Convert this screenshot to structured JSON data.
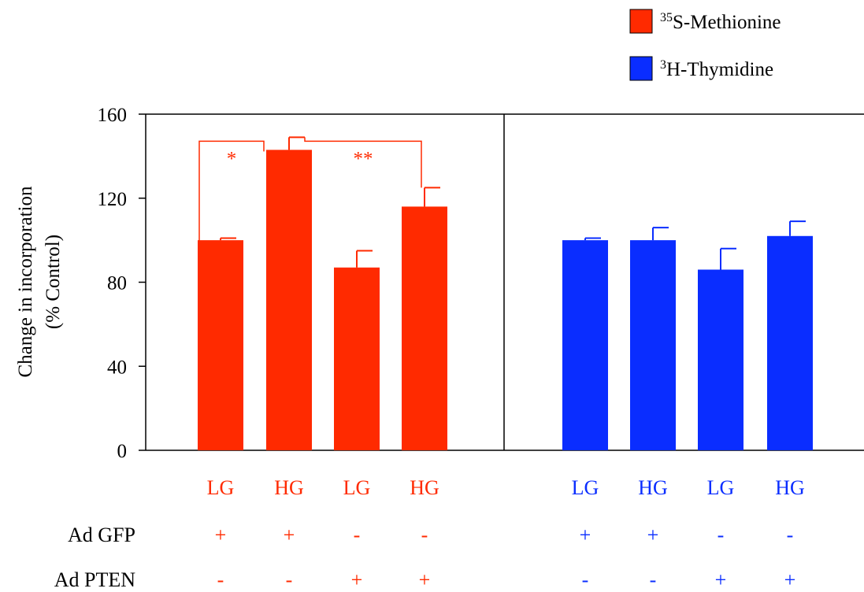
{
  "colors": {
    "methionine": "#ff2a00",
    "thymidine": "#0a2dff",
    "axis": "#000000"
  },
  "legend": [
    {
      "sup": "35",
      "label": "S-Methionine",
      "color": "#ff2a00"
    },
    {
      "sup": "3",
      "label": "H-Thymidine",
      "color": "#0a2dff"
    }
  ],
  "chart_data": {
    "type": "bar",
    "ylabel_line1": "Change in incorporation",
    "ylabel_line2": "(% Control)",
    "ylim": [
      0,
      160
    ],
    "yticks": [
      "0",
      "40",
      "80",
      "120",
      "160"
    ],
    "ytick_values": [
      0,
      40,
      80,
      120,
      160
    ],
    "grid": false,
    "legend_position": "top-right",
    "groups": [
      {
        "series_label": "35S-Methionine",
        "color": "#ff2a00",
        "categories": [
          "LG",
          "HG",
          "LG",
          "HG"
        ],
        "values": [
          100,
          143,
          87,
          116
        ],
        "errors": [
          1,
          6,
          8,
          9
        ],
        "ad_gfp": [
          "+",
          "+",
          "-",
          "-"
        ],
        "ad_pten": [
          "-",
          "-",
          "+",
          "+"
        ]
      },
      {
        "series_label": "3H-Thymidine",
        "color": "#0a2dff",
        "categories": [
          "LG",
          "HG",
          "LG",
          "HG"
        ],
        "values": [
          100,
          100,
          86,
          102
        ],
        "errors": [
          1,
          6,
          10,
          7
        ],
        "ad_gfp": [
          "+",
          "+",
          "-",
          "-"
        ],
        "ad_pten": [
          "-",
          "-",
          "+",
          "+"
        ]
      }
    ],
    "row_labels": [
      "Ad GFP",
      "Ad PTEN"
    ],
    "significance": [
      {
        "label": "*",
        "from_bar": 0,
        "to_bar": 1,
        "group": 0,
        "level": 149
      },
      {
        "label": "**",
        "from_bar": 1,
        "to_bar": 3,
        "group": 0,
        "level": 149
      }
    ]
  }
}
